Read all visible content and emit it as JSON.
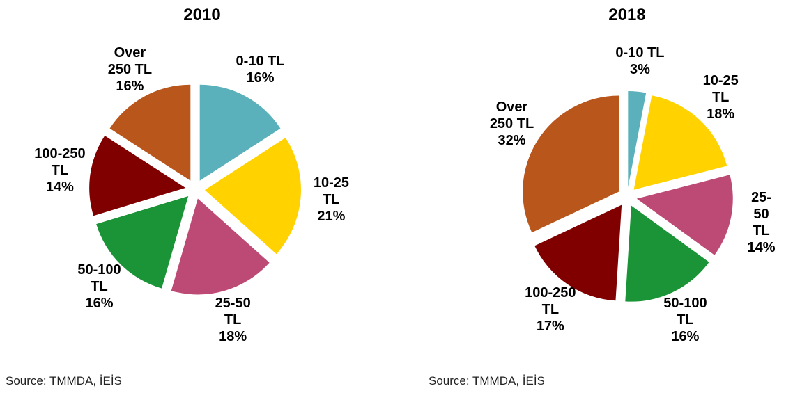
{
  "chart_data": [
    {
      "type": "pie",
      "title": "2010",
      "categories": [
        "0-10 TL",
        "10-25 TL",
        "25-50 TL",
        "50-100 TL",
        "100-250 TL",
        "Over 250 TL"
      ],
      "values": [
        16,
        21,
        18,
        16,
        14,
        16
      ],
      "value_labels": [
        "16%",
        "21%",
        "18%",
        "16%",
        "14%",
        "16%"
      ],
      "colors": [
        "#5bb1bb",
        "#ffd200",
        "#bd4a74",
        "#1a9436",
        "#800000",
        "#b8561c"
      ],
      "source": "Source: TMMDA, İEİS"
    },
    {
      "type": "pie",
      "title": "2018",
      "categories": [
        "0-10 TL",
        "10-25 TL",
        "25-50 TL",
        "50-100 TL",
        "100-250 TL",
        "Over 250 TL"
      ],
      "values": [
        3,
        18,
        14,
        16,
        17,
        32
      ],
      "value_labels": [
        "3%",
        "18%",
        "14%",
        "16%",
        "17%",
        "32%"
      ],
      "colors": [
        "#5bb1bb",
        "#ffd200",
        "#bd4a74",
        "#1a9436",
        "#800000",
        "#b8561c"
      ],
      "source": "Source: TMMDA, İEİS"
    }
  ]
}
